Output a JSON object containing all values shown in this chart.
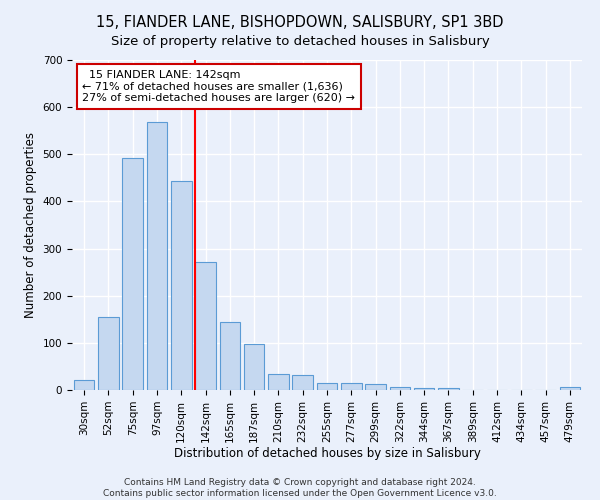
{
  "title1": "15, FIANDER LANE, BISHOPDOWN, SALISBURY, SP1 3BD",
  "title2": "Size of property relative to detached houses in Salisbury",
  "xlabel": "Distribution of detached houses by size in Salisbury",
  "ylabel": "Number of detached properties",
  "categories": [
    "30sqm",
    "52sqm",
    "75sqm",
    "97sqm",
    "120sqm",
    "142sqm",
    "165sqm",
    "187sqm",
    "210sqm",
    "232sqm",
    "255sqm",
    "277sqm",
    "299sqm",
    "322sqm",
    "344sqm",
    "367sqm",
    "389sqm",
    "412sqm",
    "434sqm",
    "457sqm",
    "479sqm"
  ],
  "values": [
    22,
    155,
    492,
    568,
    443,
    272,
    145,
    97,
    35,
    32,
    15,
    15,
    12,
    7,
    5,
    5,
    0,
    0,
    0,
    0,
    7
  ],
  "bar_color": "#c5d8f0",
  "bar_edge_color": "#5b9bd5",
  "annotation_text": "  15 FIANDER LANE: 142sqm\n← 71% of detached houses are smaller (1,636)\n27% of semi-detached houses are larger (620) →",
  "annotation_box_color": "#ffffff",
  "annotation_box_edge_color": "#cc0000",
  "footer1": "Contains HM Land Registry data © Crown copyright and database right 2024.",
  "footer2": "Contains public sector information licensed under the Open Government Licence v3.0.",
  "ylim": [
    0,
    700
  ],
  "yticks": [
    0,
    100,
    200,
    300,
    400,
    500,
    600,
    700
  ],
  "background_color": "#eaf0fb",
  "grid_color": "#ffffff",
  "title_fontsize": 10.5,
  "subtitle_fontsize": 9.5,
  "axis_label_fontsize": 8.5,
  "tick_fontsize": 7.5,
  "annotation_fontsize": 8,
  "footer_fontsize": 6.5
}
